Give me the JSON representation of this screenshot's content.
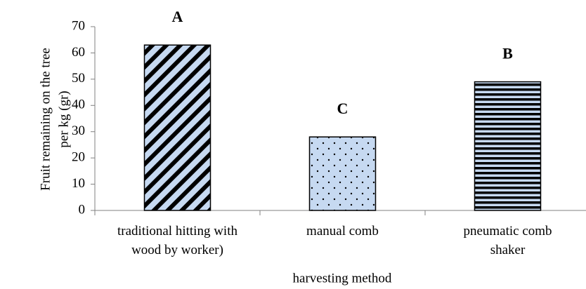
{
  "chart_data": {
    "type": "bar",
    "y_label": [
      "Fruit remaining on the tree",
      "per kg (gr)"
    ],
    "x_label": "harvesting method",
    "categories": [
      "traditional hitting with wood by worker)",
      "manual comb",
      "pneumatic comb shaker"
    ],
    "values": [
      63,
      28,
      49
    ],
    "annotations": [
      "A",
      "C",
      "B"
    ],
    "fill": "#c6d9f1",
    "patterns": [
      "diagonal",
      "dots",
      "horizontal"
    ],
    "ylim": [
      0,
      70
    ],
    "yticks": [
      0,
      10,
      20,
      30,
      40,
      50,
      60,
      70
    ],
    "grid": false
  }
}
